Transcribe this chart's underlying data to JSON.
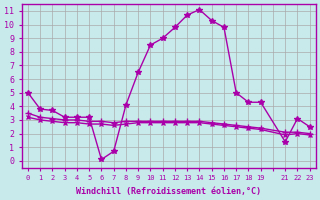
{
  "xlabel": "Windchill (Refroidissement éolien,°C)",
  "background_color": "#c8eaea",
  "grid_color": "#aaaaaa",
  "line_color": "#aa00aa",
  "x_ticks": [
    0,
    1,
    2,
    3,
    4,
    5,
    6,
    7,
    8,
    9,
    10,
    11,
    12,
    13,
    14,
    15,
    16,
    17,
    18,
    19,
    20,
    21,
    22,
    23
  ],
  "x_tick_labels": [
    "0",
    "1",
    "2",
    "3",
    "4",
    "5",
    "6",
    "7",
    "8",
    "9",
    "10",
    "11",
    "12",
    "13",
    "14",
    "15",
    "16",
    "17",
    "18",
    "19",
    "",
    "21",
    "22",
    "23"
  ],
  "ylim": [
    -0.5,
    11.5
  ],
  "xlim": [
    -0.5,
    23.5
  ],
  "y_ticks": [
    0,
    1,
    2,
    3,
    4,
    5,
    6,
    7,
    8,
    9,
    10,
    11
  ],
  "line1_x": [
    0,
    1,
    2,
    3,
    4,
    5,
    6,
    7,
    8,
    9,
    10,
    11,
    12,
    13,
    14,
    15,
    16,
    17,
    18,
    19,
    21,
    22,
    23
  ],
  "line1_y": [
    5.0,
    3.8,
    3.7,
    3.2,
    3.2,
    3.2,
    0.1,
    0.7,
    4.1,
    6.5,
    8.5,
    9.0,
    9.8,
    10.7,
    11.1,
    10.3,
    9.8,
    5.0,
    4.3,
    4.3,
    1.4,
    3.1,
    2.5
  ],
  "line2_x": [
    0,
    1,
    2,
    3,
    4,
    5,
    6,
    7,
    8,
    9,
    10,
    11,
    12,
    13,
    14,
    15,
    16,
    17,
    18,
    19,
    21,
    22,
    23
  ],
  "line2_y": [
    3.5,
    3.2,
    3.1,
    3.0,
    3.0,
    2.9,
    2.9,
    2.8,
    2.9,
    2.9,
    2.9,
    2.9,
    2.9,
    2.9,
    2.9,
    2.8,
    2.7,
    2.6,
    2.5,
    2.4,
    2.1,
    2.1,
    2.0
  ],
  "line3_x": [
    0,
    1,
    2,
    3,
    4,
    5,
    6,
    7,
    8,
    9,
    10,
    11,
    12,
    13,
    14,
    15,
    16,
    17,
    18,
    19,
    21,
    22,
    23
  ],
  "line3_y": [
    3.2,
    3.0,
    2.9,
    2.8,
    2.8,
    2.7,
    2.7,
    2.6,
    2.7,
    2.8,
    2.8,
    2.8,
    2.8,
    2.8,
    2.8,
    2.7,
    2.6,
    2.5,
    2.4,
    2.3,
    1.9,
    2.0,
    1.9
  ]
}
